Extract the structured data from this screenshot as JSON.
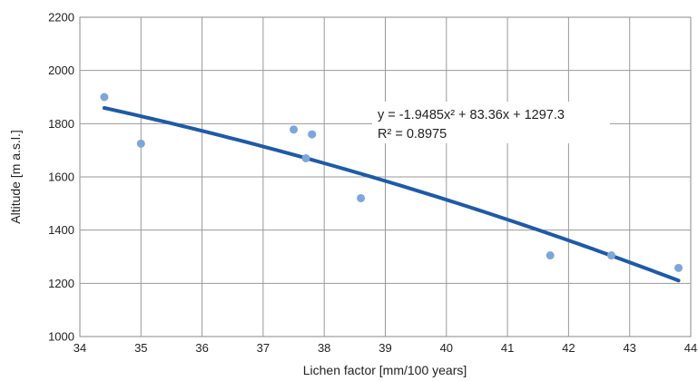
{
  "chart_data": {
    "type": "scatter",
    "xlabel": "Lichen factor [mm/100 years]",
    "ylabel": "Altitude [m a.s.l.]",
    "xlim": [
      34,
      44
    ],
    "ylim": [
      1000,
      2200
    ],
    "xticks": [
      "34",
      "35",
      "36",
      "37",
      "38",
      "39",
      "40",
      "41",
      "42",
      "43",
      "44"
    ],
    "yticks": [
      "1000",
      "1200",
      "1400",
      "1600",
      "1800",
      "2000",
      "2200"
    ],
    "grid": true,
    "points": [
      {
        "x": 34.4,
        "y": 1900
      },
      {
        "x": 35.0,
        "y": 1725
      },
      {
        "x": 37.5,
        "y": 1778
      },
      {
        "x": 37.7,
        "y": 1670
      },
      {
        "x": 37.8,
        "y": 1760
      },
      {
        "x": 38.6,
        "y": 1520
      },
      {
        "x": 41.7,
        "y": 1305
      },
      {
        "x": 42.7,
        "y": 1305
      },
      {
        "x": 43.8,
        "y": 1258
      }
    ],
    "trendline": {
      "type": "polynomial",
      "coefficients": [
        -1.9485,
        83.36,
        1297.3
      ],
      "x_range": [
        34.4,
        43.8
      ],
      "color": "#1f5aa6"
    },
    "equation_line1": "y = -1.9485x² + 83.36x + 1297.3",
    "equation_line2": "R² = 0.8975",
    "point_color": "#7ea6d8"
  }
}
